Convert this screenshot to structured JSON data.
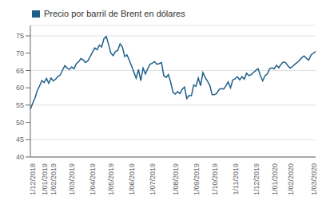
{
  "chart_data": {
    "type": "line",
    "title": "Precio por barril de Brent en dólares",
    "color": "#1f5f8b",
    "categories": [
      "1/12/2018",
      null,
      null,
      null,
      null,
      "1/01/2019",
      null,
      null,
      null,
      "1/02/2019",
      null,
      null,
      null,
      null,
      null,
      null,
      null,
      "1/03/2019",
      null,
      null,
      null,
      null,
      null,
      null,
      null,
      null,
      "1/04/2019",
      null,
      null,
      null,
      null,
      null,
      null,
      null,
      "1/05/2019",
      null,
      null,
      null,
      null,
      null,
      null,
      null,
      null,
      "1/06/2019",
      null,
      null,
      null,
      null,
      null,
      null,
      null,
      null,
      "1/07/2019",
      null,
      null,
      null,
      null,
      null,
      null,
      null,
      null,
      null,
      "1/08/2019",
      null,
      null,
      null,
      null,
      null,
      null,
      null,
      null,
      "1/09/2019",
      null,
      null,
      null,
      null,
      null,
      null,
      null,
      "1/10/2019",
      null,
      null,
      null,
      null,
      null,
      null,
      null,
      null,
      "1/11/2019",
      null,
      null,
      null,
      null,
      null,
      null,
      null,
      null,
      "1/12/2019",
      null,
      null,
      null,
      null,
      null,
      null,
      null,
      "1/01/2020",
      null,
      null,
      null,
      null,
      null,
      null,
      "1/02/2020",
      null,
      null,
      null,
      null,
      null,
      null,
      null,
      null,
      null,
      "1/03/2020",
      null,
      null
    ],
    "values": [
      53.8,
      55.5,
      57.0,
      59.2,
      60.5,
      62.1,
      61.5,
      62.7,
      61.3,
      62.8,
      62.0,
      62.5,
      63.3,
      63.7,
      65.1,
      66.4,
      65.7,
      65.3,
      66.0,
      65.5,
      67.0,
      67.5,
      68.5,
      68.0,
      67.3,
      67.8,
      69.0,
      70.3,
      71.5,
      71.0,
      72.3,
      71.8,
      74.2,
      74.8,
      72.5,
      70.0,
      69.3,
      70.5,
      70.8,
      72.7,
      71.8,
      69.0,
      69.5,
      68.0,
      66.3,
      64.5,
      62.8,
      65.3,
      62.0,
      65.7,
      64.0,
      65.5,
      66.8,
      67.1,
      67.6,
      66.8,
      67.0,
      67.3,
      63.5,
      63.0,
      63.8,
      61.6,
      58.7,
      58.2,
      58.9,
      58.3,
      59.6,
      60.2,
      56.9,
      57.8,
      57.7,
      60.8,
      60.4,
      62.8,
      60.6,
      64.4,
      63.0,
      61.9,
      60.7,
      58.0,
      58.0,
      58.4,
      59.5,
      59.8,
      59.6,
      60.6,
      61.7,
      60.0,
      62.3,
      62.6,
      63.2,
      62.3,
      63.2,
      62.5,
      64.2,
      63.5,
      63.8,
      64.4,
      65.0,
      65.5,
      63.5,
      62.0,
      63.5,
      64.0,
      65.5,
      65.8,
      65.5,
      66.5,
      65.8,
      66.8,
      67.5,
      67.2,
      66.3,
      65.7,
      66.2,
      66.8,
      67.3,
      68.0,
      68.7,
      69.2,
      68.5,
      68.0,
      69.5,
      70.0,
      70.5
    ],
    "ylim": [
      40,
      78
    ],
    "yticks": [
      40,
      45,
      50,
      55,
      60,
      65,
      70,
      75
    ],
    "grid": true
  }
}
